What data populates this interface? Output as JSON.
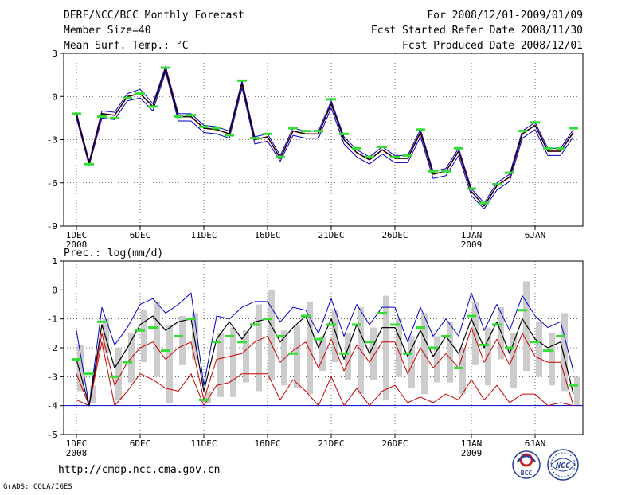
{
  "header": {
    "title": "DERF/NCC/BCC Monthly Forecast",
    "member_size": "Member Size=40",
    "variable": "Mean Surf. Temp.: °C",
    "forecast_period": "For 2008/12/01-2009/01/09",
    "fcst_started": "Fcst Started Refer Date 2008/11/30",
    "fcst_produced": "Fcst Produced Date 2008/12/01"
  },
  "footer": {
    "url": "http://cmdp.ncc.cma.gov.cn",
    "credit": "GrADS: COLA/IGES",
    "logo_bcc_text": "BCC",
    "logo_ncc_text": "NCC"
  },
  "colors": {
    "mean": "#000000",
    "upper": "#0000cc",
    "lower": "#cc0000",
    "marker": "#33dd33",
    "bar": "#cccccc",
    "baseline": "#0000cc"
  },
  "chart_data": [
    {
      "type": "line",
      "title": "Mean Surf. Temp.: °C",
      "x_days": [
        1,
        2,
        3,
        4,
        5,
        6,
        7,
        8,
        9,
        10,
        11,
        12,
        13,
        14,
        15,
        16,
        17,
        18,
        19,
        20,
        21,
        22,
        23,
        24,
        25,
        26,
        27,
        28,
        29,
        30,
        31,
        32,
        33,
        34,
        35,
        36,
        37,
        38,
        39,
        40
      ],
      "xticks": [
        {
          "day": 1,
          "label": "1DEC",
          "sub": "2008"
        },
        {
          "day": 6,
          "label": "6DEC"
        },
        {
          "day": 11,
          "label": "11DEC"
        },
        {
          "day": 16,
          "label": "16DEC"
        },
        {
          "day": 21,
          "label": "21DEC"
        },
        {
          "day": 26,
          "label": "26DEC"
        },
        {
          "day": 32,
          "label": "1JAN",
          "sub": "2009"
        },
        {
          "day": 37,
          "label": "6JAN"
        }
      ],
      "ylim": [
        -9,
        3
      ],
      "yticks": [
        3,
        0,
        -3,
        -6,
        -9
      ],
      "series": [
        {
          "name": "mean",
          "values": [
            -1.3,
            -4.6,
            -1.2,
            -1.3,
            0.0,
            0.2,
            -0.7,
            1.9,
            -1.4,
            -1.4,
            -2.2,
            -2.3,
            -2.6,
            0.9,
            -3.0,
            -2.8,
            -4.3,
            -2.4,
            -2.6,
            -2.6,
            -0.5,
            -3.0,
            -3.9,
            -4.4,
            -3.7,
            -4.3,
            -4.3,
            -2.5,
            -5.4,
            -5.2,
            -3.8,
            -6.6,
            -7.6,
            -6.2,
            -5.6,
            -2.6,
            -2.0,
            -3.8,
            -3.8,
            -2.5
          ]
        },
        {
          "name": "upper",
          "values": [
            -1.1,
            -4.5,
            -1.0,
            -1.1,
            0.2,
            0.5,
            -0.5,
            2.1,
            -1.2,
            -1.2,
            -2.0,
            -2.1,
            -2.4,
            1.1,
            -2.8,
            -2.6,
            -4.1,
            -2.2,
            -2.4,
            -2.4,
            -0.3,
            -2.8,
            -3.7,
            -4.2,
            -3.5,
            -4.1,
            -4.1,
            -2.3,
            -5.2,
            -5.0,
            -3.6,
            -6.4,
            -7.4,
            -6.0,
            -5.4,
            -2.4,
            -1.8,
            -3.6,
            -3.6,
            -2.3
          ]
        },
        {
          "name": "lower",
          "values": [
            -1.5,
            -4.8,
            -1.5,
            -1.6,
            -0.3,
            -0.1,
            -1.0,
            1.7,
            -1.7,
            -1.7,
            -2.5,
            -2.6,
            -2.9,
            0.6,
            -3.3,
            -3.1,
            -4.5,
            -2.7,
            -2.9,
            -2.9,
            -0.8,
            -3.3,
            -4.2,
            -4.7,
            -4.0,
            -4.6,
            -4.6,
            -2.8,
            -5.7,
            -5.5,
            -4.1,
            -6.9,
            -7.8,
            -6.5,
            -5.9,
            -2.9,
            -2.3,
            -4.1,
            -4.1,
            -2.8
          ]
        },
        {
          "name": "markers",
          "values": [
            -1.2,
            -4.7,
            -1.4,
            -1.5,
            -0.1,
            0.2,
            -0.7,
            2.0,
            -1.4,
            -1.3,
            -2.1,
            -2.2,
            -2.7,
            1.1,
            -2.9,
            -2.6,
            -4.2,
            -2.2,
            -2.4,
            -2.4,
            -0.2,
            -2.6,
            -3.6,
            -4.2,
            -3.5,
            -4.2,
            -4.1,
            -2.3,
            -5.2,
            -5.2,
            -3.6,
            -6.4,
            -7.4,
            -6.1,
            -5.3,
            -2.4,
            -1.8,
            -3.6,
            -3.6,
            -2.2
          ]
        }
      ]
    },
    {
      "type": "line",
      "title": "Prec.: log(mm/d)",
      "x_days": [
        1,
        2,
        3,
        4,
        5,
        6,
        7,
        8,
        9,
        10,
        11,
        12,
        13,
        14,
        15,
        16,
        17,
        18,
        19,
        20,
        21,
        22,
        23,
        24,
        25,
        26,
        27,
        28,
        29,
        30,
        31,
        32,
        33,
        34,
        35,
        36,
        37,
        38,
        39,
        40
      ],
      "xticks": [
        {
          "day": 1,
          "label": "1DEC",
          "sub": "2008"
        },
        {
          "day": 6,
          "label": "6DEC"
        },
        {
          "day": 11,
          "label": "11DEC"
        },
        {
          "day": 16,
          "label": "16DEC"
        },
        {
          "day": 21,
          "label": "21DEC"
        },
        {
          "day": 26,
          "label": "26DEC"
        },
        {
          "day": 32,
          "label": "1JAN",
          "sub": "2009"
        },
        {
          "day": 37,
          "label": "6JAN"
        }
      ],
      "ylim": [
        -5,
        1
      ],
      "yticks": [
        1,
        0,
        -1,
        -2,
        -3,
        -4,
        -5
      ],
      "series": [
        {
          "name": "upper",
          "values": [
            -1.4,
            -4.0,
            -0.6,
            -1.9,
            -1.3,
            -0.5,
            -0.3,
            -0.8,
            -0.5,
            -0.1,
            -3.3,
            -0.9,
            -1.0,
            -0.6,
            -0.4,
            -0.4,
            -1.1,
            -0.6,
            -0.7,
            -1.5,
            -0.3,
            -1.6,
            -0.5,
            -1.2,
            -0.6,
            -0.6,
            -1.8,
            -0.6,
            -1.6,
            -1.0,
            -1.6,
            -0.1,
            -1.4,
            -0.5,
            -1.4,
            -0.2,
            -0.9,
            -1.3,
            -1.1,
            -2.8
          ]
        },
        {
          "name": "mean",
          "values": [
            -2.4,
            -4.0,
            -1.2,
            -2.7,
            -2.0,
            -1.2,
            -0.9,
            -1.4,
            -1.1,
            -1.0,
            -3.5,
            -1.7,
            -1.1,
            -1.7,
            -1.1,
            -1.0,
            -1.8,
            -1.3,
            -0.9,
            -2.0,
            -1.0,
            -2.4,
            -1.2,
            -2.2,
            -1.3,
            -1.3,
            -2.3,
            -1.4,
            -2.3,
            -1.6,
            -2.2,
            -1.0,
            -2.0,
            -1.1,
            -2.2,
            -1.0,
            -1.7,
            -2.0,
            -1.8,
            -3.6
          ]
        },
        {
          "name": "lower_mid",
          "values": [
            -2.9,
            -4.0,
            -1.5,
            -3.3,
            -2.5,
            -2.0,
            -1.8,
            -2.4,
            -2.0,
            -1.8,
            -3.8,
            -2.4,
            -2.3,
            -2.2,
            -1.8,
            -1.6,
            -2.5,
            -2.1,
            -1.8,
            -2.7,
            -1.7,
            -2.8,
            -1.9,
            -2.5,
            -1.8,
            -1.8,
            -2.9,
            -2.0,
            -2.7,
            -2.2,
            -2.7,
            -1.3,
            -2.5,
            -1.7,
            -2.6,
            -1.5,
            -2.3,
            -2.5,
            -2.5,
            -4.0
          ]
        },
        {
          "name": "lower",
          "values": [
            -3.8,
            -4.0,
            -1.8,
            -4.0,
            -3.5,
            -2.9,
            -3.1,
            -3.4,
            -3.5,
            -2.9,
            -4.0,
            -3.3,
            -3.2,
            -2.9,
            -2.9,
            -2.9,
            -3.8,
            -3.1,
            -3.5,
            -4.0,
            -3.0,
            -4.0,
            -3.4,
            -4.0,
            -3.5,
            -3.3,
            -3.9,
            -3.7,
            -3.9,
            -3.6,
            -3.8,
            -3.1,
            -3.8,
            -3.3,
            -3.9,
            -3.6,
            -3.6,
            -4.0,
            -3.9,
            -4.0
          ]
        },
        {
          "name": "markers",
          "values": [
            -2.4,
            -2.9,
            -1.1,
            -3.0,
            -2.5,
            -1.4,
            -1.3,
            -2.1,
            -1.6,
            -1.0,
            -3.8,
            -1.8,
            -1.6,
            -1.8,
            -1.2,
            -1.0,
            -1.6,
            -2.2,
            -0.9,
            -1.7,
            -1.2,
            -2.2,
            -1.2,
            -1.8,
            -0.8,
            -1.2,
            -2.2,
            -1.3,
            -2.0,
            -1.6,
            -2.7,
            -0.9,
            -1.9,
            -1.2,
            -2.0,
            -0.7,
            -1.8,
            -2.1,
            -1.6,
            -3.3
          ]
        },
        {
          "name": "bar_top",
          "values": [
            -1.9,
            -3.3,
            -1.0,
            -2.0,
            -1.5,
            -0.7,
            -0.4,
            -1.2,
            -0.9,
            -0.8,
            -3.5,
            -1.5,
            -1.3,
            -1.4,
            -0.5,
            0.0,
            -1.4,
            -1.2,
            -0.4,
            -1.6,
            -0.7,
            -1.5,
            -0.6,
            -1.3,
            -0.2,
            -1.0,
            -1.6,
            -0.8,
            -1.6,
            -1.1,
            -2.0,
            -0.4,
            -1.3,
            -0.6,
            -1.5,
            0.3,
            -1.1,
            -1.5,
            -0.8,
            -3.0
          ]
        },
        {
          "name": "bar_bottom",
          "values": [
            -3.5,
            -3.9,
            -2.2,
            -3.8,
            -3.2,
            -2.5,
            -3.0,
            -3.9,
            -2.6,
            -2.4,
            -3.9,
            -3.7,
            -3.7,
            -3.2,
            -3.5,
            -3.1,
            -3.3,
            -3.4,
            -3.6,
            -2.8,
            -2.5,
            -3.1,
            -3.6,
            -3.1,
            -3.8,
            -3.0,
            -3.4,
            -3.6,
            -3.2,
            -3.2,
            -3.6,
            -2.6,
            -3.3,
            -2.4,
            -3.4,
            -2.8,
            -3.0,
            -3.3,
            -3.5,
            -4.0
          ]
        }
      ]
    }
  ]
}
